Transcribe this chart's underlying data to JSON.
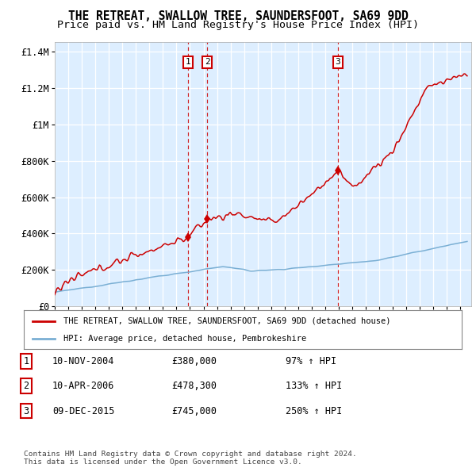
{
  "title": "THE RETREAT, SWALLOW TREE, SAUNDERSFOOT, SA69 9DD",
  "subtitle": "Price paid vs. HM Land Registry's House Price Index (HPI)",
  "ylim": [
    0,
    1450000
  ],
  "yticks": [
    0,
    200000,
    400000,
    600000,
    800000,
    1000000,
    1200000,
    1400000
  ],
  "ytick_labels": [
    "£0",
    "£200K",
    "£400K",
    "£600K",
    "£800K",
    "£1M",
    "£1.2M",
    "£1.4M"
  ],
  "xlim_start": 1995.0,
  "xlim_end": 2025.8,
  "sale_dates": [
    2004.87,
    2006.28,
    2015.94
  ],
  "sale_prices": [
    380000,
    478300,
    745000
  ],
  "sale_labels": [
    "1",
    "2",
    "3"
  ],
  "legend_line1": "THE RETREAT, SWALLOW TREE, SAUNDERSFOOT, SA69 9DD (detached house)",
  "legend_line2": "HPI: Average price, detached house, Pembrokeshire",
  "table_rows": [
    [
      "1",
      "10-NOV-2004",
      "£380,000",
      "97% ↑ HPI"
    ],
    [
      "2",
      "10-APR-2006",
      "£478,300",
      "133% ↑ HPI"
    ],
    [
      "3",
      "09-DEC-2015",
      "£745,000",
      "250% ↑ HPI"
    ]
  ],
  "footer": "Contains HM Land Registry data © Crown copyright and database right 2024.\nThis data is licensed under the Open Government Licence v3.0.",
  "red_color": "#cc0000",
  "blue_color": "#7aafd4",
  "bg_color": "#ddeeff",
  "grid_color": "#ffffff",
  "title_fontsize": 10.5,
  "subtitle_fontsize": 9.5
}
